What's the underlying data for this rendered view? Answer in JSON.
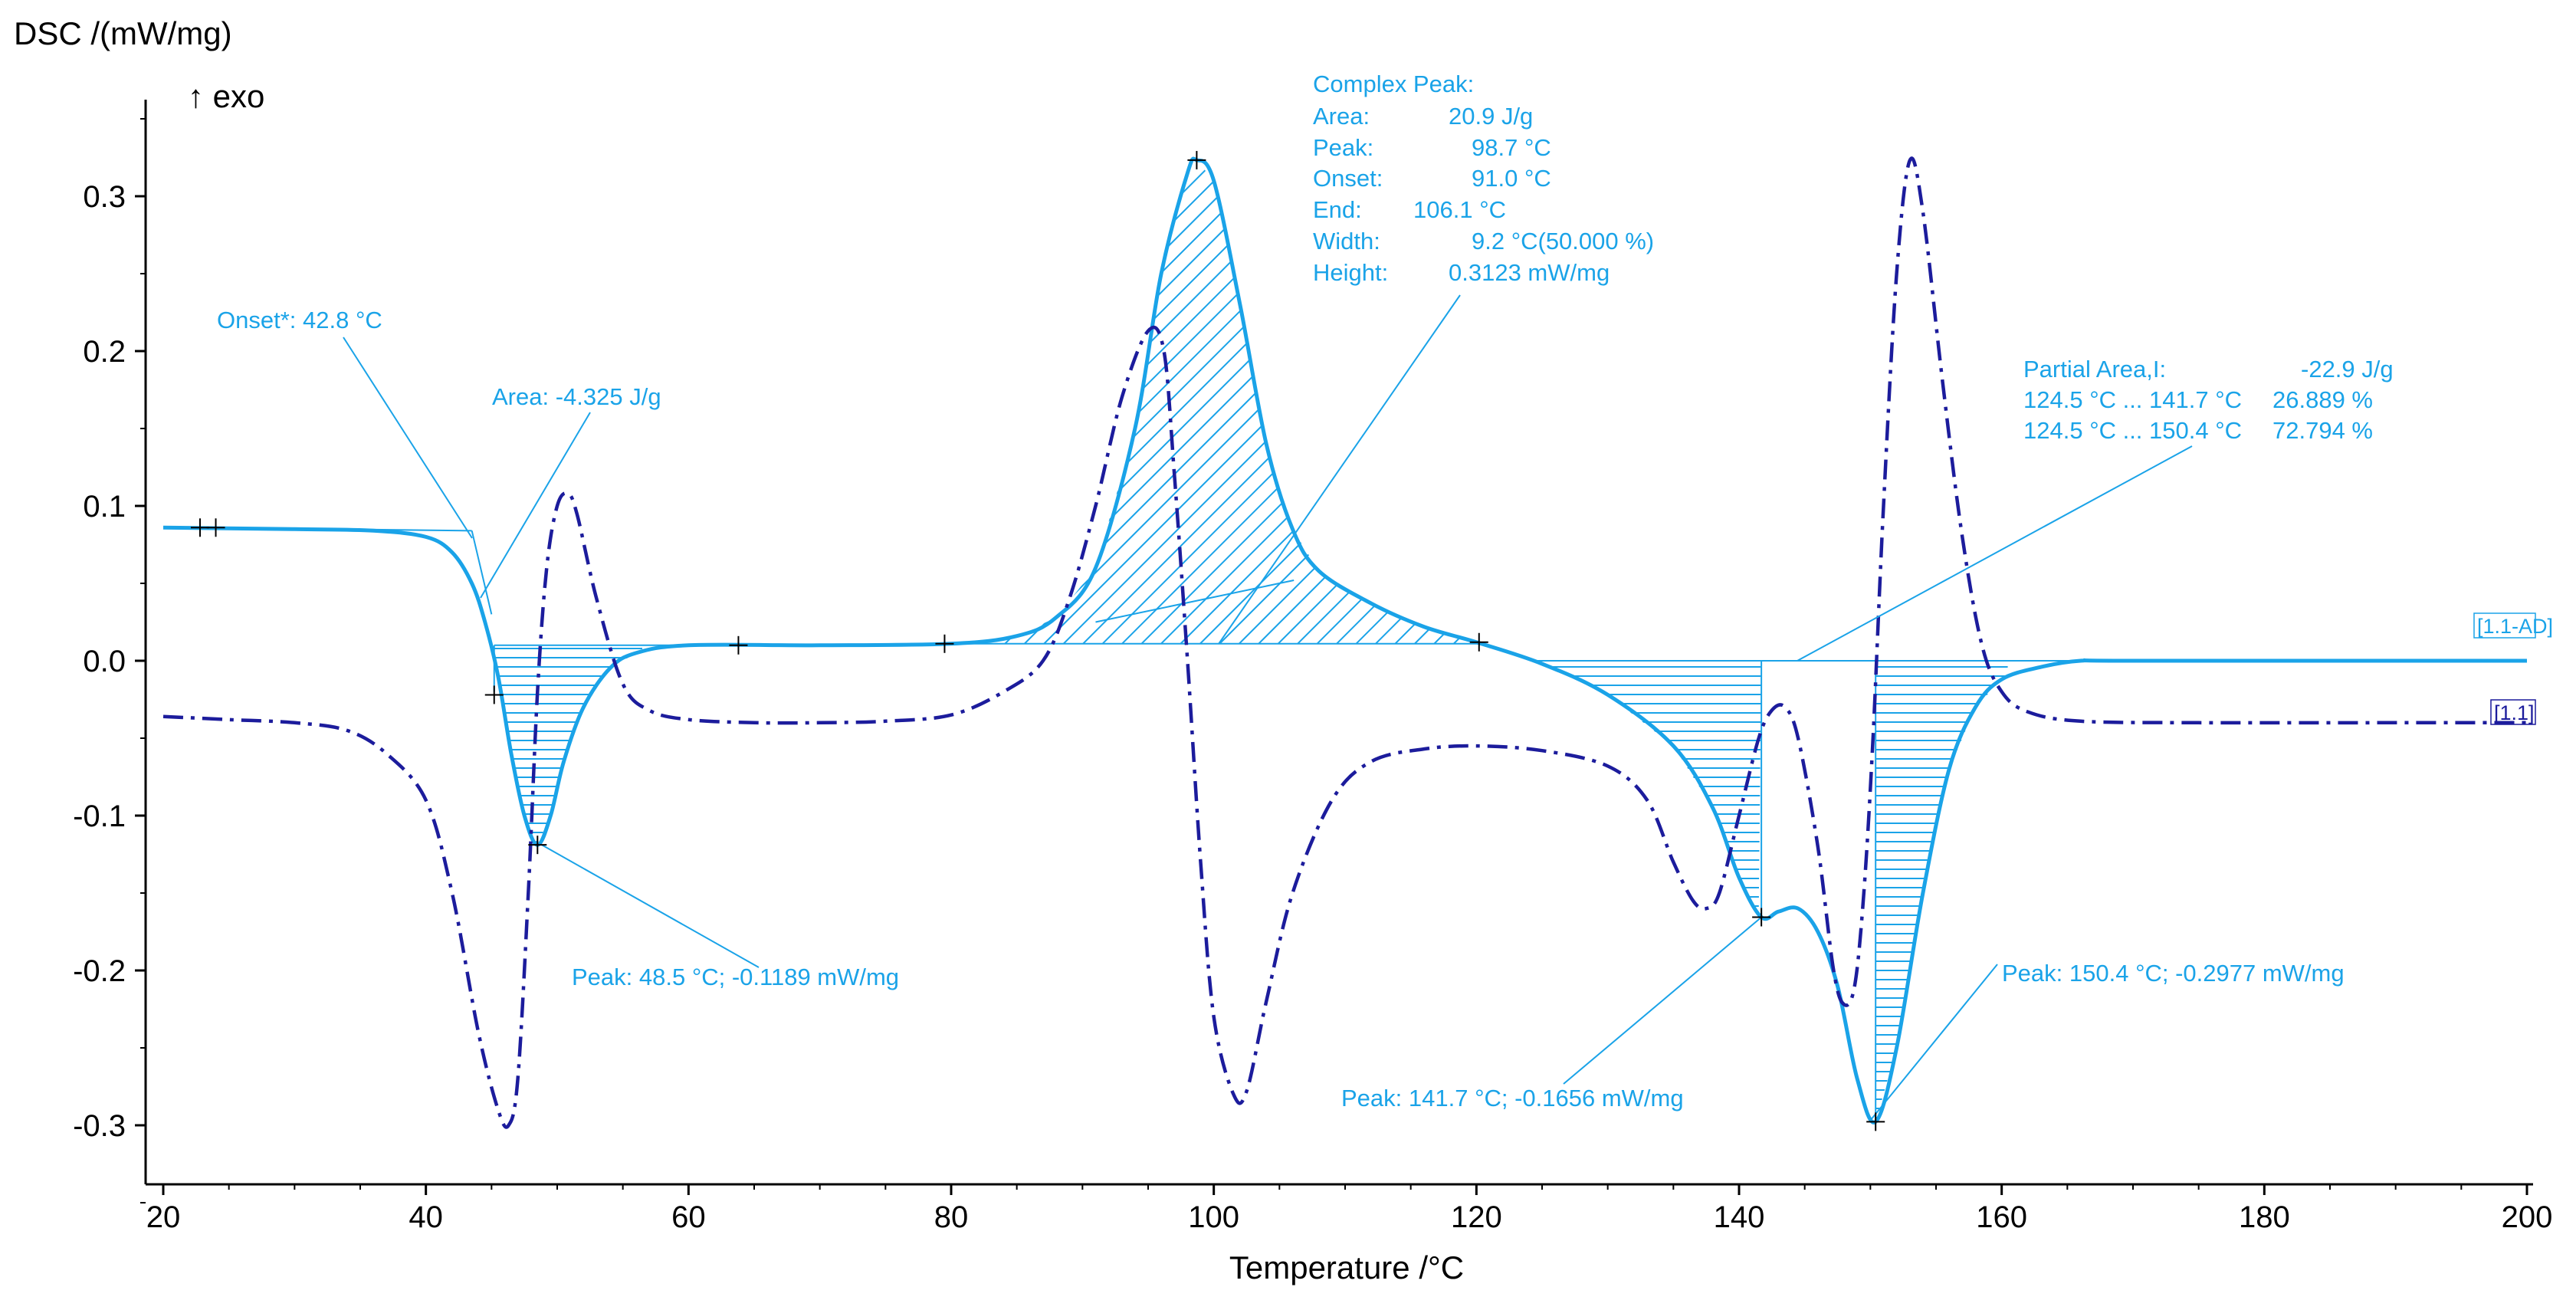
{
  "chart_data": {
    "type": "line",
    "title": "",
    "ylabel": "DSC /(mW/mg)",
    "exo_label": "↑ exo",
    "xlabel": "Temperature /°C",
    "xlim": [
      20,
      200
    ],
    "ylim": [
      -0.33,
      0.37
    ],
    "xticks": [
      20,
      40,
      60,
      80,
      100,
      120,
      140,
      160,
      180,
      200
    ],
    "yticks": [
      {
        "value": 0.3,
        "label": "0.3"
      },
      {
        "value": 0.2,
        "label": "0.2"
      },
      {
        "value": 0.1,
        "label": "0.1"
      },
      {
        "value": 0.0,
        "label": "0.0"
      },
      {
        "value": -0.1,
        "label": "-0.1"
      },
      {
        "value": -0.2,
        "label": "-0.2"
      },
      {
        "value": -0.3,
        "label": "-0.3"
      }
    ],
    "colors": {
      "solid": "#1aa3e8",
      "dashdot": "#1c1c9c",
      "axis": "#000000"
    },
    "series": [
      {
        "name": "[1.1-AD]",
        "style": "solid",
        "points": [
          [
            20,
            0.086
          ],
          [
            30,
            0.085
          ],
          [
            36,
            0.084
          ],
          [
            40,
            0.08
          ],
          [
            42,
            0.07
          ],
          [
            43.5,
            0.05
          ],
          [
            44.5,
            0.025
          ],
          [
            45.5,
            -0.01
          ],
          [
            46.5,
            -0.06
          ],
          [
            47.5,
            -0.1
          ],
          [
            48.5,
            -0.1189
          ],
          [
            49.5,
            -0.1
          ],
          [
            50.5,
            -0.065
          ],
          [
            52,
            -0.03
          ],
          [
            54,
            -0.005
          ],
          [
            56,
            0.005
          ],
          [
            60,
            0.01
          ],
          [
            70,
            0.01
          ],
          [
            80,
            0.011
          ],
          [
            85,
            0.016
          ],
          [
            88,
            0.028
          ],
          [
            91,
            0.06
          ],
          [
            94,
            0.15
          ],
          [
            96,
            0.25
          ],
          [
            98,
            0.315
          ],
          [
            98.7,
            0.3233
          ],
          [
            100,
            0.31
          ],
          [
            102,
            0.23
          ],
          [
            104,
            0.14
          ],
          [
            106,
            0.085
          ],
          [
            108,
            0.058
          ],
          [
            112,
            0.037
          ],
          [
            116,
            0.022
          ],
          [
            120,
            0.012
          ],
          [
            125,
            -0.002
          ],
          [
            130,
            -0.022
          ],
          [
            135,
            -0.055
          ],
          [
            138,
            -0.095
          ],
          [
            140,
            -0.14
          ],
          [
            141.7,
            -0.1656
          ],
          [
            143,
            -0.162
          ],
          [
            144.5,
            -0.16
          ],
          [
            146,
            -0.175
          ],
          [
            147.5,
            -0.21
          ],
          [
            149,
            -0.27
          ],
          [
            150.4,
            -0.2977
          ],
          [
            152,
            -0.25
          ],
          [
            154,
            -0.15
          ],
          [
            156,
            -0.07
          ],
          [
            158,
            -0.03
          ],
          [
            160,
            -0.012
          ],
          [
            163,
            -0.004
          ],
          [
            166,
            0.0
          ],
          [
            170,
            0.0
          ],
          [
            200,
            0.0
          ]
        ]
      },
      {
        "name": "[1.1]",
        "style": "dashdot",
        "points": [
          [
            20,
            -0.036
          ],
          [
            25,
            -0.038
          ],
          [
            30,
            -0.04
          ],
          [
            34,
            -0.045
          ],
          [
            37,
            -0.06
          ],
          [
            40,
            -0.09
          ],
          [
            42,
            -0.15
          ],
          [
            44,
            -0.24
          ],
          [
            45.5,
            -0.29
          ],
          [
            46.3,
            -0.3
          ],
          [
            47,
            -0.27
          ],
          [
            47.8,
            -0.15
          ],
          [
            48.5,
            -0.02
          ],
          [
            49.2,
            0.06
          ],
          [
            50,
            0.1
          ],
          [
            50.8,
            0.108
          ],
          [
            51.5,
            0.095
          ],
          [
            53,
            0.04
          ],
          [
            55,
            -0.015
          ],
          [
            57,
            -0.032
          ],
          [
            60,
            -0.038
          ],
          [
            65,
            -0.04
          ],
          [
            70,
            -0.04
          ],
          [
            75,
            -0.039
          ],
          [
            80,
            -0.035
          ],
          [
            84,
            -0.02
          ],
          [
            87,
            0.0
          ],
          [
            89,
            0.04
          ],
          [
            91,
            0.1
          ],
          [
            93,
            0.17
          ],
          [
            95,
            0.213
          ],
          [
            96.2,
            0.2
          ],
          [
            97,
            0.12
          ],
          [
            98,
            0.0
          ],
          [
            99,
            -0.13
          ],
          [
            100,
            -0.23
          ],
          [
            101.5,
            -0.28
          ],
          [
            102.5,
            -0.278
          ],
          [
            104,
            -0.22
          ],
          [
            106,
            -0.15
          ],
          [
            109,
            -0.09
          ],
          [
            112,
            -0.065
          ],
          [
            116,
            -0.057
          ],
          [
            120,
            -0.055
          ],
          [
            125,
            -0.058
          ],
          [
            130,
            -0.068
          ],
          [
            133,
            -0.09
          ],
          [
            135,
            -0.13
          ],
          [
            136.5,
            -0.155
          ],
          [
            137.5,
            -0.16
          ],
          [
            138.5,
            -0.15
          ],
          [
            140,
            -0.1
          ],
          [
            141.5,
            -0.05
          ],
          [
            142.5,
            -0.032
          ],
          [
            143.5,
            -0.03
          ],
          [
            144.5,
            -0.05
          ],
          [
            146,
            -0.12
          ],
          [
            147.2,
            -0.2
          ],
          [
            148,
            -0.222
          ],
          [
            148.8,
            -0.21
          ],
          [
            149.5,
            -0.15
          ],
          [
            150.2,
            -0.05
          ],
          [
            151,
            0.1
          ],
          [
            152,
            0.25
          ],
          [
            153,
            0.323
          ],
          [
            154,
            0.29
          ],
          [
            155.5,
            0.18
          ],
          [
            157,
            0.08
          ],
          [
            158.5,
            0.01
          ],
          [
            160,
            -0.02
          ],
          [
            162,
            -0.033
          ],
          [
            166,
            -0.039
          ],
          [
            175,
            -0.04
          ],
          [
            190,
            -0.04
          ],
          [
            200,
            -0.04
          ]
        ]
      }
    ],
    "annotations": {
      "onset": "Onset*: 42.8 °C",
      "area1": "Area: -4.325 J/g",
      "peak1": "Peak: 48.5 °C; -0.1189 mW/mg",
      "complex_peak": {
        "title": "Complex Peak:",
        "rows": [
          {
            "label": "Area:",
            "value": "20.9 J/g"
          },
          {
            "label": "Peak:",
            "value": "98.7 °C"
          },
          {
            "label": "Onset:",
            "value": "91.0 °C"
          },
          {
            "label": "End:",
            "value": "106.1 °C"
          },
          {
            "label": "Width:",
            "value": "9.2 °C(50.000 %)"
          },
          {
            "label": "Height:",
            "value": "0.3123 mW/mg"
          }
        ]
      },
      "partial_area": {
        "title": "Partial Area,I:",
        "title_value": "-22.9 J/g",
        "rows": [
          {
            "range": "124.5 °C ... 141.7 °C",
            "value": "26.889 %"
          },
          {
            "range": "124.5 °C ... 150.4 °C",
            "value": "72.794 %"
          }
        ]
      },
      "peak3": "Peak: 141.7 °C; -0.1656 mW/mg",
      "peak4": "Peak: 150.4 °C; -0.2977 mW/mg"
    }
  }
}
